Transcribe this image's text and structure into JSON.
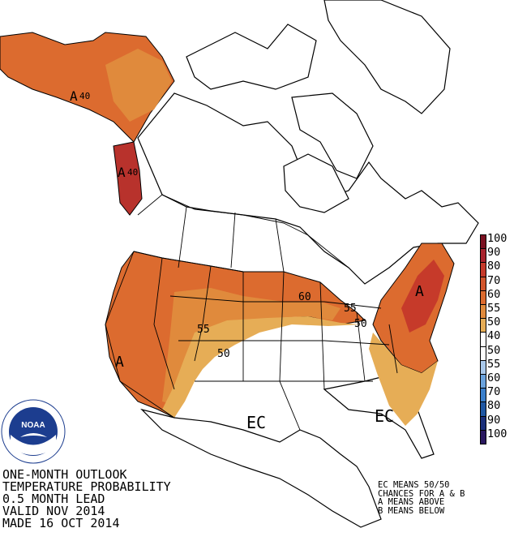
{
  "title_lines": [
    "ONE-MONTH OUTLOOK",
    "TEMPERATURE PROBABILITY",
    "0.5 MONTH LEAD",
    "VALID NOV 2014",
    "MADE 16 OCT 2014"
  ],
  "legend_note_lines": [
    "EC MEANS 50/50",
    "CHANCES FOR A & B",
    "A MEANS ABOVE",
    "B MEANS BELOW"
  ],
  "scale": [
    {
      "label": "100",
      "color": "#7a1020"
    },
    {
      "label": "90",
      "color": "#a8232d"
    },
    {
      "label": "80",
      "color": "#c63a2a"
    },
    {
      "label": "70",
      "color": "#d2552c"
    },
    {
      "label": "60",
      "color": "#dc6b2f"
    },
    {
      "label": "55",
      "color": "#e08a3c"
    },
    {
      "label": "50",
      "color": "#e6ad56"
    },
    {
      "label": "40",
      "color": "#ffffff"
    },
    {
      "label": "50",
      "color": "#ffffff"
    },
    {
      "label": "55",
      "color": "#a9c8ea"
    },
    {
      "label": "60",
      "color": "#6aa2dd"
    },
    {
      "label": "70",
      "color": "#3a7fcb"
    },
    {
      "label": "80",
      "color": "#1f57a3"
    },
    {
      "label": "90",
      "color": "#1a2f7a"
    },
    {
      "label": "100",
      "color": "#2a1860"
    }
  ],
  "map_labels": {
    "a_alaska": "A",
    "a_alaska_40": "40",
    "a_bc": "A",
    "a_bc_40": "40",
    "a_west": "A",
    "a_northeast": "A",
    "ec_center": "EC",
    "ec_southeast": "EC",
    "c60_midwest": "60",
    "c55_greatlakes": "55",
    "c50_greatlakes": "50",
    "c55_rockies": "55",
    "c50_plains": "50"
  },
  "colors": {
    "above_40": "#dc6b2f",
    "above_50": "#e08a3c",
    "above_33": "#e6ad56",
    "land": "#ffffff",
    "outline": "#000000"
  },
  "logo": {
    "text": "NOAA"
  }
}
